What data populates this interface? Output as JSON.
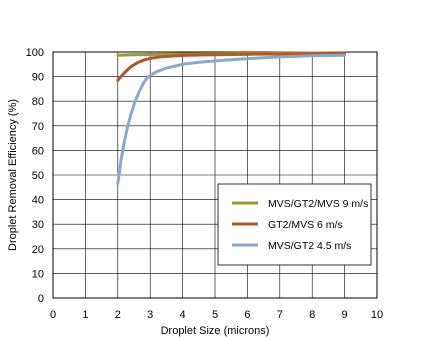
{
  "chart_data": {
    "type": "line",
    "title": "",
    "xlabel": "Droplet Size (microns)",
    "ylabel": "Droplet Removal Efficiency (%)",
    "xlim": [
      0,
      10
    ],
    "ylim": [
      0,
      100
    ],
    "xticks": [
      0,
      1,
      2,
      3,
      4,
      5,
      6,
      7,
      8,
      9,
      10
    ],
    "yticks": [
      0,
      10,
      20,
      30,
      40,
      50,
      60,
      70,
      80,
      90,
      100
    ],
    "grid": true,
    "legend_position": "lower-right",
    "series": [
      {
        "name": "MVS/GT2/MVS 9 m/s",
        "color": "#9a9a2e",
        "x": [
          2,
          2.5,
          3,
          4,
          5,
          6,
          7,
          8,
          9
        ],
        "y": [
          98.7,
          98.9,
          99.0,
          99.2,
          99.3,
          99.4,
          99.5,
          99.6,
          99.7
        ]
      },
      {
        "name": "GT2/MVS 6 m/s",
        "color": "#b5562a",
        "x": [
          2,
          2.2,
          2.4,
          2.6,
          2.8,
          3,
          3.3,
          3.6,
          4,
          4.5,
          5,
          6,
          7,
          8,
          9
        ],
        "y": [
          88.5,
          91.5,
          94.0,
          95.6,
          96.7,
          97.4,
          98.0,
          98.3,
          98.6,
          98.8,
          98.9,
          99.1,
          99.2,
          99.3,
          99.4
        ]
      },
      {
        "name": "MVS/GT2 4.5 m/s",
        "color": "#8aa8c8",
        "x": [
          2,
          2.1,
          2.2,
          2.3,
          2.4,
          2.5,
          2.6,
          2.7,
          2.8,
          2.9,
          3,
          3.2,
          3.5,
          4,
          4.5,
          5,
          6,
          7,
          8,
          9
        ],
        "y": [
          46.5,
          56,
          63.5,
          69.5,
          74.5,
          78.5,
          82,
          85,
          87.5,
          89.3,
          90.5,
          92,
          93.5,
          95,
          95.8,
          96.4,
          97.3,
          98.0,
          98.5,
          98.7
        ]
      }
    ]
  }
}
